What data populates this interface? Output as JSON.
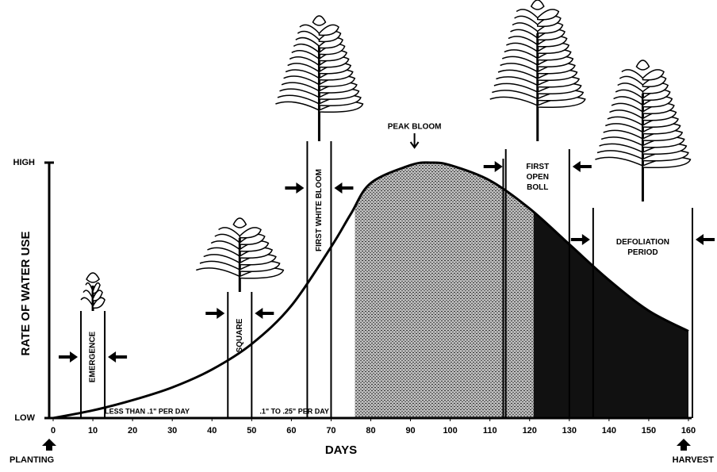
{
  "chart_data": {
    "type": "line",
    "y_label": "RATE OF WATER USE",
    "x_label": "DAYS",
    "x": [
      0,
      10,
      20,
      30,
      40,
      50,
      60,
      70,
      75,
      80,
      90,
      95,
      100,
      110,
      120,
      130,
      140,
      150,
      160
    ],
    "values": [
      0,
      3,
      7,
      12,
      19,
      29,
      44,
      67,
      80,
      92,
      99,
      100,
      99,
      93,
      82,
      68,
      54,
      42,
      34
    ],
    "color": "#000000",
    "xlim": [
      0,
      160
    ],
    "xticks": [
      0,
      10,
      20,
      30,
      40,
      50,
      60,
      70,
      80,
      90,
      100,
      110,
      120,
      130,
      140,
      150,
      160
    ],
    "ylim": [
      0,
      100
    ],
    "yticks": [
      {
        "value": 0,
        "label": "LOW"
      },
      {
        "value": 100,
        "label": "HIGH"
      }
    ],
    "shaded_regions": [
      {
        "from": 76,
        "to": 121,
        "color": "#8a8a8a"
      },
      {
        "from": 121,
        "to": 160,
        "color": "#111111"
      }
    ],
    "stages": [
      {
        "label": "EMERGENCE",
        "from": 7,
        "to": 13
      },
      {
        "label": "SQUARE",
        "from": 44,
        "to": 50
      },
      {
        "label": "FIRST WHITE BLOOM",
        "from": 64,
        "to": 70
      },
      {
        "label": "FIRST OPEN BOLL",
        "from": 114,
        "to": 130
      },
      {
        "label": "DEFOLIATION PERIOD",
        "from": 136,
        "to": 161
      }
    ],
    "peak_bloom": {
      "label": "PEAK BLOOM",
      "x": 95
    },
    "notes": [
      "LESS THAN .1\" PER DAY",
      ".1\" TO .25\" PER DAY"
    ],
    "start_label": "PLANTING",
    "end_label": "HARVEST"
  }
}
